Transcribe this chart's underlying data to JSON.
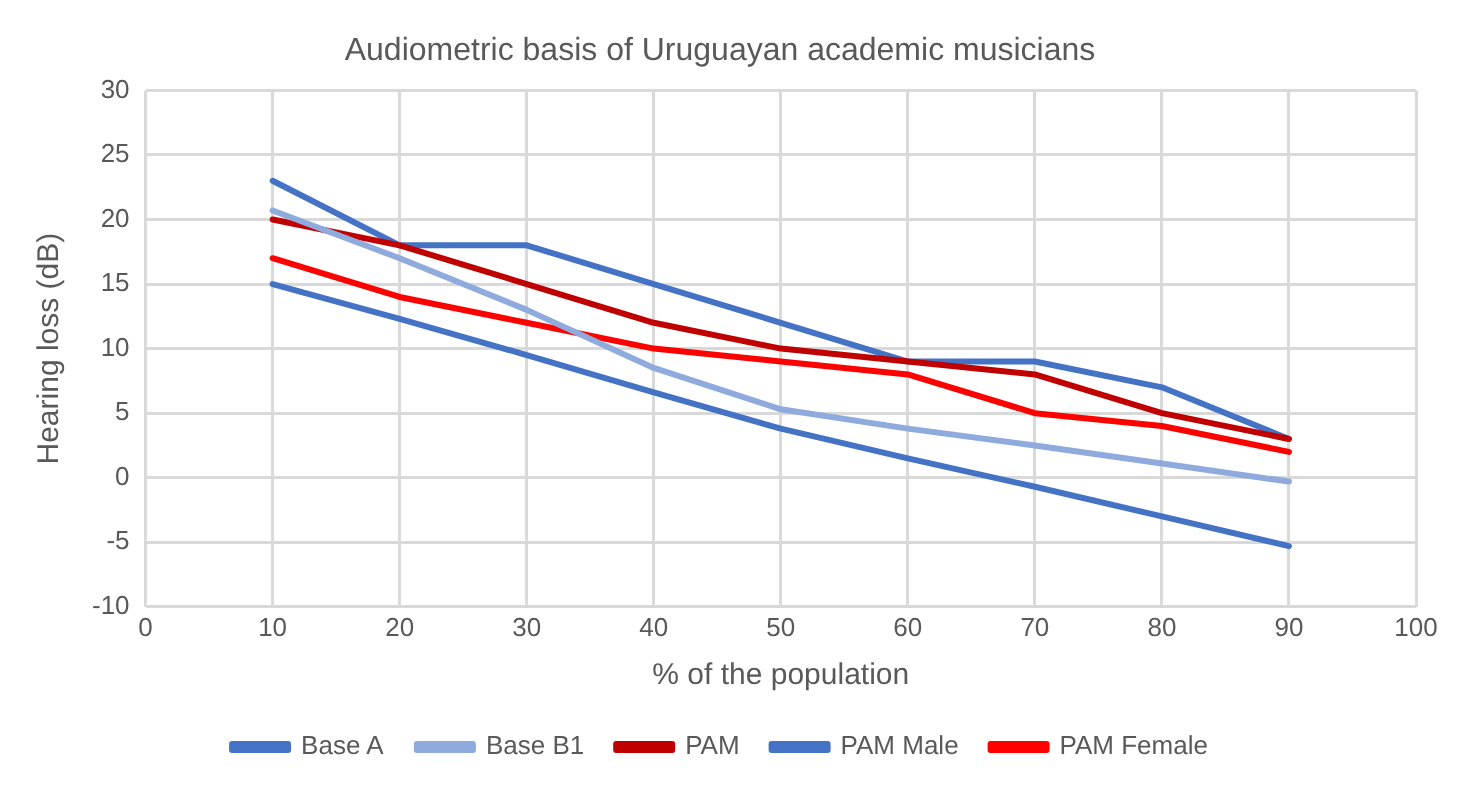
{
  "chart_data": {
    "type": "line",
    "title": "Audiometric basis of Uruguayan academic musicians",
    "xlabel": "% of the population",
    "ylabel": "Hearing loss (dB)",
    "x": [
      10,
      20,
      30,
      40,
      50,
      60,
      70,
      80,
      90
    ],
    "series": [
      {
        "name": "Base A",
        "color": "#4472c4",
        "values": [
          15,
          12.3,
          9.5,
          6.6,
          3.8,
          1.5,
          -0.7,
          -3,
          -5.3
        ]
      },
      {
        "name": "Base B1",
        "color": "#8faadc",
        "values": [
          20.7,
          17,
          13,
          8.5,
          5.3,
          3.8,
          2.5,
          1.1,
          -0.3
        ]
      },
      {
        "name": "PAM",
        "color": "#c00000",
        "values": [
          20,
          18,
          15,
          12,
          10,
          9,
          8,
          5,
          3
        ]
      },
      {
        "name": "PAM Male",
        "color": "#4472c4",
        "values": [
          23,
          18,
          18,
          15,
          12,
          9,
          9,
          7,
          3
        ]
      },
      {
        "name": "PAM Female",
        "color": "#ff0000",
        "values": [
          17,
          14,
          12,
          10,
          9,
          8,
          5,
          4,
          2
        ]
      }
    ],
    "xlim": [
      0,
      100
    ],
    "xticks": [
      0,
      10,
      20,
      30,
      40,
      50,
      60,
      70,
      80,
      90,
      100
    ],
    "ylim": [
      -10,
      30
    ],
    "yticks": [
      -10,
      -5,
      0,
      5,
      10,
      15,
      20,
      25,
      30
    ],
    "grid": true,
    "legend": "bottom",
    "marker": "none",
    "line_style": "solid"
  }
}
